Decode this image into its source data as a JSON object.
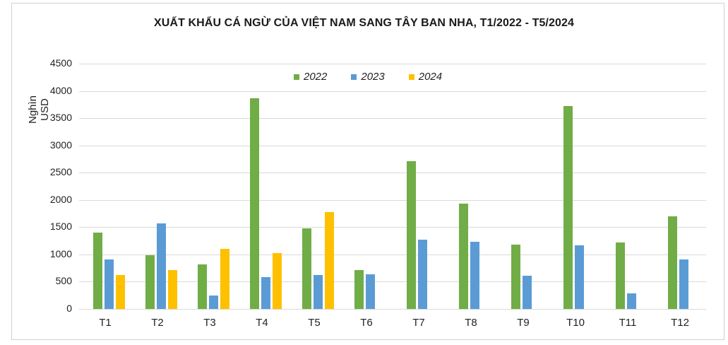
{
  "chart": {
    "title": "XUẤT KHẨU CÁ NGỪ CỦA VIỆT NAM SANG TÂY BAN NHA, T1/2022 - T5/2024",
    "ylabel": "Nghìn USD",
    "yticks": [
      "0",
      "500",
      "1000",
      "1500",
      "2000",
      "2500",
      "3000",
      "3500",
      "4000",
      "4500"
    ],
    "xticks": [
      "T1",
      "T2",
      "T3",
      "T4",
      "T5",
      "T6",
      "T7",
      "T8",
      "T9",
      "T10",
      "T11",
      "T12"
    ],
    "legend": [
      {
        "label": "2022",
        "color": "#70ad47"
      },
      {
        "label": "2023",
        "color": "#5b9bd5"
      },
      {
        "label": "2024",
        "color": "#ffc000"
      }
    ]
  },
  "chart_data": {
    "type": "bar",
    "title": "XUẤT KHẨU CÁ NGỪ CỦA VIỆT NAM SANG TÂY BAN NHA, T1/2022 - T5/2024",
    "xlabel": "",
    "ylabel": "Nghìn USD",
    "ylim": [
      0,
      4500
    ],
    "grid": true,
    "legend_position": "top",
    "categories": [
      "T1",
      "T2",
      "T3",
      "T4",
      "T5",
      "T6",
      "T7",
      "T8",
      "T9",
      "T10",
      "T11",
      "T12"
    ],
    "series": [
      {
        "name": "2022",
        "color": "#70ad47",
        "values": [
          1400,
          990,
          820,
          3860,
          1475,
          715,
          2710,
          1930,
          1180,
          3720,
          1215,
          1695
        ]
      },
      {
        "name": "2023",
        "color": "#5b9bd5",
        "values": [
          910,
          1570,
          245,
          585,
          620,
          635,
          1265,
          1230,
          610,
          1170,
          290,
          910
        ]
      },
      {
        "name": "2024",
        "color": "#ffc000",
        "values": [
          620,
          715,
          1105,
          1025,
          1775,
          null,
          null,
          null,
          null,
          null,
          null,
          null
        ]
      }
    ]
  }
}
